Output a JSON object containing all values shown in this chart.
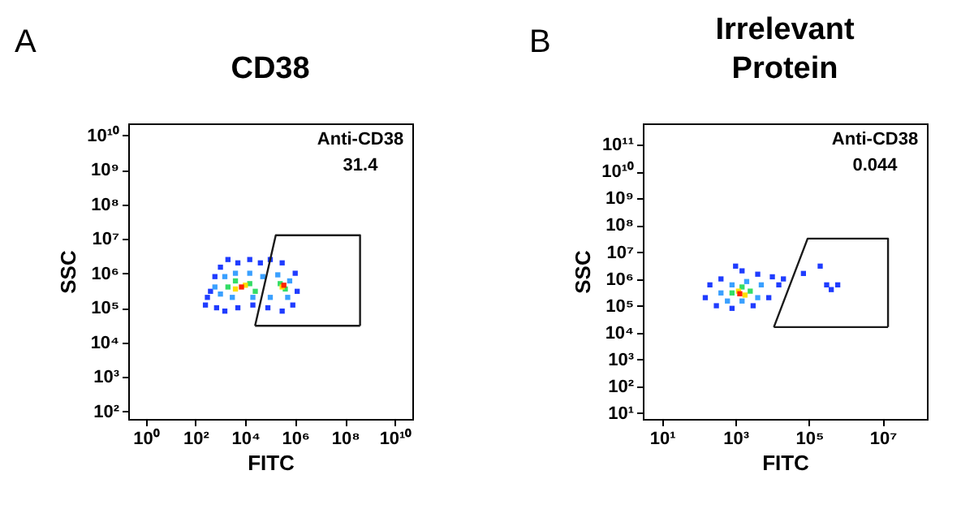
{
  "chart_data": [
    {
      "type": "scatter",
      "title": "CD38",
      "xlabel": "FITC",
      "ylabel": "SSC",
      "log": "xy",
      "grid": false,
      "legend": false,
      "marker": "square",
      "annotations": [
        "A",
        "Anti-CD38",
        "31.4"
      ],
      "xlim": [
        0.2,
        50000000000
      ],
      "ylim": [
        60,
        22000000000
      ],
      "xticks": [
        {
          "value": 1,
          "label": "10⁰"
        },
        {
          "value": 100,
          "label": "10²"
        },
        {
          "value": 10000,
          "label": "10⁴"
        },
        {
          "value": 1000000,
          "label": "10⁶"
        },
        {
          "value": 100000000,
          "label": "10⁸"
        },
        {
          "value": 10000000000,
          "label": "10¹⁰"
        }
      ],
      "yticks": [
        {
          "value": 100,
          "label": "10²"
        },
        {
          "value": 1000,
          "label": "10³"
        },
        {
          "value": 10000,
          "label": "10⁴"
        },
        {
          "value": 100000,
          "label": "10⁵"
        },
        {
          "value": 1000000,
          "label": "10⁶"
        },
        {
          "value": 10000000,
          "label": "10⁷"
        },
        {
          "value": 100000000,
          "label": "10⁸"
        },
        {
          "value": 1000000000,
          "label": "10⁹"
        },
        {
          "value": 10000000000,
          "label": "10¹⁰"
        }
      ],
      "series": [
        {
          "x": [
            250,
            400,
            600,
            1000,
            2000,
            5000,
            15000,
            40000,
            100000,
            300000,
            1000000,
            1200000,
            800000,
            300000,
            80000,
            20000,
            5000,
            1500,
            700,
            300,
            600,
            1500,
            4000,
            15000,
            50000,
            200000,
            600000,
            500000,
            100000,
            20000,
            3000,
            1000,
            2000,
            4000,
            15000,
            25000,
            250000,
            400000,
            4000,
            10000,
            300000,
            7000,
            350000
          ],
          "values": [
            120000,
            300000,
            800000,
            1500000,
            2500000,
            2000000,
            2500000,
            2000000,
            2500000,
            2000000,
            1000000,
            300000,
            120000,
            80000,
            100000,
            120000,
            100000,
            80000,
            100000,
            200000,
            400000,
            800000,
            1000000,
            1000000,
            800000,
            900000,
            600000,
            200000,
            200000,
            200000,
            200000,
            250000,
            400000,
            600000,
            500000,
            300000,
            500000,
            350000,
            350000,
            450000,
            400000,
            400000,
            450000
          ],
          "colors": [
            "#1f3cff",
            "#1f3cff",
            "#1f3cff",
            "#1f3cff",
            "#1f3cff",
            "#1f3cff",
            "#1f3cff",
            "#1f3cff",
            "#1f3cff",
            "#1f3cff",
            "#1f3cff",
            "#1f3cff",
            "#1f3cff",
            "#1f3cff",
            "#1f3cff",
            "#1f3cff",
            "#1f3cff",
            "#1f3cff",
            "#1f3cff",
            "#1f3cff",
            "#3aa0ff",
            "#3aa0ff",
            "#3aa0ff",
            "#3aa0ff",
            "#3aa0ff",
            "#3aa0ff",
            "#3aa0ff",
            "#3aa0ff",
            "#3aa0ff",
            "#3aa0ff",
            "#3aa0ff",
            "#3aa0ff",
            "#33dd66",
            "#33dd66",
            "#33dd66",
            "#33dd66",
            "#33dd66",
            "#33dd66",
            "#ffdd00",
            "#ffdd00",
            "#ffdd00",
            "#ff2200",
            "#ff2200"
          ]
        },
        {
          "type": "line",
          "marker": "none",
          "color": "#1a1a1a",
          "x": [
            24500,
            166000,
            400000000,
            400000000
          ],
          "values": [
            30000,
            12600000,
            12600000,
            30000
          ]
        },
        {
          "type": "line",
          "marker": "none",
          "color": "#1a1a1a",
          "x": [
            24500,
            400000000
          ],
          "values": [
            30000,
            30000
          ]
        }
      ]
    },
    {
      "type": "scatter",
      "title": "Irrelevant Protein",
      "xlabel": "FITC",
      "ylabel": "SSC",
      "log": "xy",
      "grid": false,
      "legend": false,
      "marker": "square",
      "annotations": [
        "B",
        "Anti-CD38",
        "0.044"
      ],
      "xlim": [
        3,
        160000000
      ],
      "ylim": [
        6,
        630000000000
      ],
      "xticks": [
        {
          "value": 10,
          "label": "10¹"
        },
        {
          "value": 1000,
          "label": "10³"
        },
        {
          "value": 100000,
          "label": "10⁵"
        },
        {
          "value": 10000000,
          "label": "10⁷"
        }
      ],
      "yticks": [
        {
          "value": 10,
          "label": "10¹"
        },
        {
          "value": 100,
          "label": "10²"
        },
        {
          "value": 1000,
          "label": "10³"
        },
        {
          "value": 10000,
          "label": "10⁴"
        },
        {
          "value": 100000,
          "label": "10⁵"
        },
        {
          "value": 1000000,
          "label": "10⁶"
        },
        {
          "value": 10000000,
          "label": "10⁷"
        },
        {
          "value": 100000000,
          "label": "10⁸"
        },
        {
          "value": 1000000000,
          "label": "10⁹"
        },
        {
          "value": 10000000000,
          "label": "10¹⁰"
        },
        {
          "value": 100000000000,
          "label": "10¹¹"
        }
      ],
      "series": [
        {
          "x": [
            150,
            200,
            400,
            1500,
            4000,
            10000,
            15000,
            8000,
            3000,
            800,
            300,
            1000,
            20000,
            70000,
            200000,
            300000,
            600000,
            400000,
            400,
            800,
            2000,
            5000,
            4000,
            1500,
            600,
            800,
            1500,
            2500,
            1200,
            1800,
            1300
          ],
          "values": [
            200000,
            600000,
            1000000,
            2000000,
            1500000,
            1200000,
            600000,
            200000,
            100000,
            80000,
            100000,
            3000000,
            1000000,
            1600000,
            3000000,
            600000,
            600000,
            400000,
            300000,
            600000,
            800000,
            600000,
            200000,
            150000,
            150000,
            300000,
            500000,
            350000,
            350000,
            250000,
            280000
          ],
          "colors": [
            "#1f3cff",
            "#1f3cff",
            "#1f3cff",
            "#1f3cff",
            "#1f3cff",
            "#1f3cff",
            "#1f3cff",
            "#1f3cff",
            "#1f3cff",
            "#1f3cff",
            "#1f3cff",
            "#1f3cff",
            "#1f3cff",
            "#1f3cff",
            "#1f3cff",
            "#1f3cff",
            "#1f3cff",
            "#1f3cff",
            "#3aa0ff",
            "#3aa0ff",
            "#3aa0ff",
            "#3aa0ff",
            "#3aa0ff",
            "#3aa0ff",
            "#3aa0ff",
            "#33dd66",
            "#33dd66",
            "#33dd66",
            "#ffdd00",
            "#ffdd00",
            "#ff2200"
          ]
        },
        {
          "type": "line",
          "marker": "none",
          "color": "#1a1a1a",
          "x": [
            11000,
            91000,
            14000000,
            14000000
          ],
          "values": [
            16000,
            32000000,
            32000000,
            16000
          ]
        },
        {
          "type": "line",
          "marker": "none",
          "color": "#1a1a1a",
          "x": [
            11000,
            14000000
          ],
          "values": [
            16000,
            16000
          ]
        }
      ]
    }
  ]
}
